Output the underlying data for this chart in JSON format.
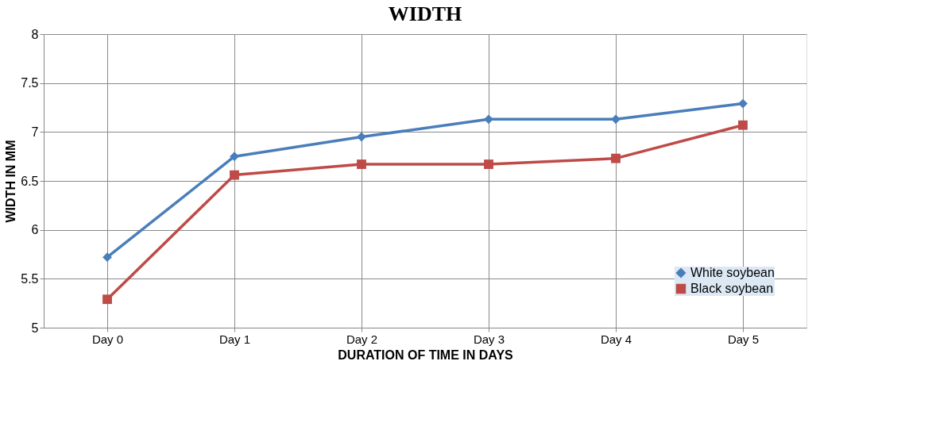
{
  "chart_data": {
    "type": "line",
    "title": "WIDTH",
    "xlabel": "DURATION OF TIME IN DAYS",
    "ylabel": "WIDTH IN MM",
    "categories": [
      "Day 0",
      "Day 1",
      "Day 2",
      "Day 3",
      "Day 4",
      "Day 5"
    ],
    "series": [
      {
        "name": "White soybean",
        "color": "#4a7ebb",
        "marker": "diamond",
        "values": [
          5.72,
          6.75,
          6.95,
          7.13,
          7.13,
          7.29
        ]
      },
      {
        "name": "Black soybean",
        "color": "#be4b48",
        "marker": "square",
        "values": [
          5.29,
          6.56,
          6.67,
          6.67,
          6.73,
          7.07
        ]
      }
    ],
    "ylim": [
      5,
      8
    ],
    "yticks": [
      5,
      5.5,
      6,
      6.5,
      7,
      7.5,
      8
    ],
    "grid": true,
    "legend": "bottom right",
    "line_style": "solid"
  }
}
